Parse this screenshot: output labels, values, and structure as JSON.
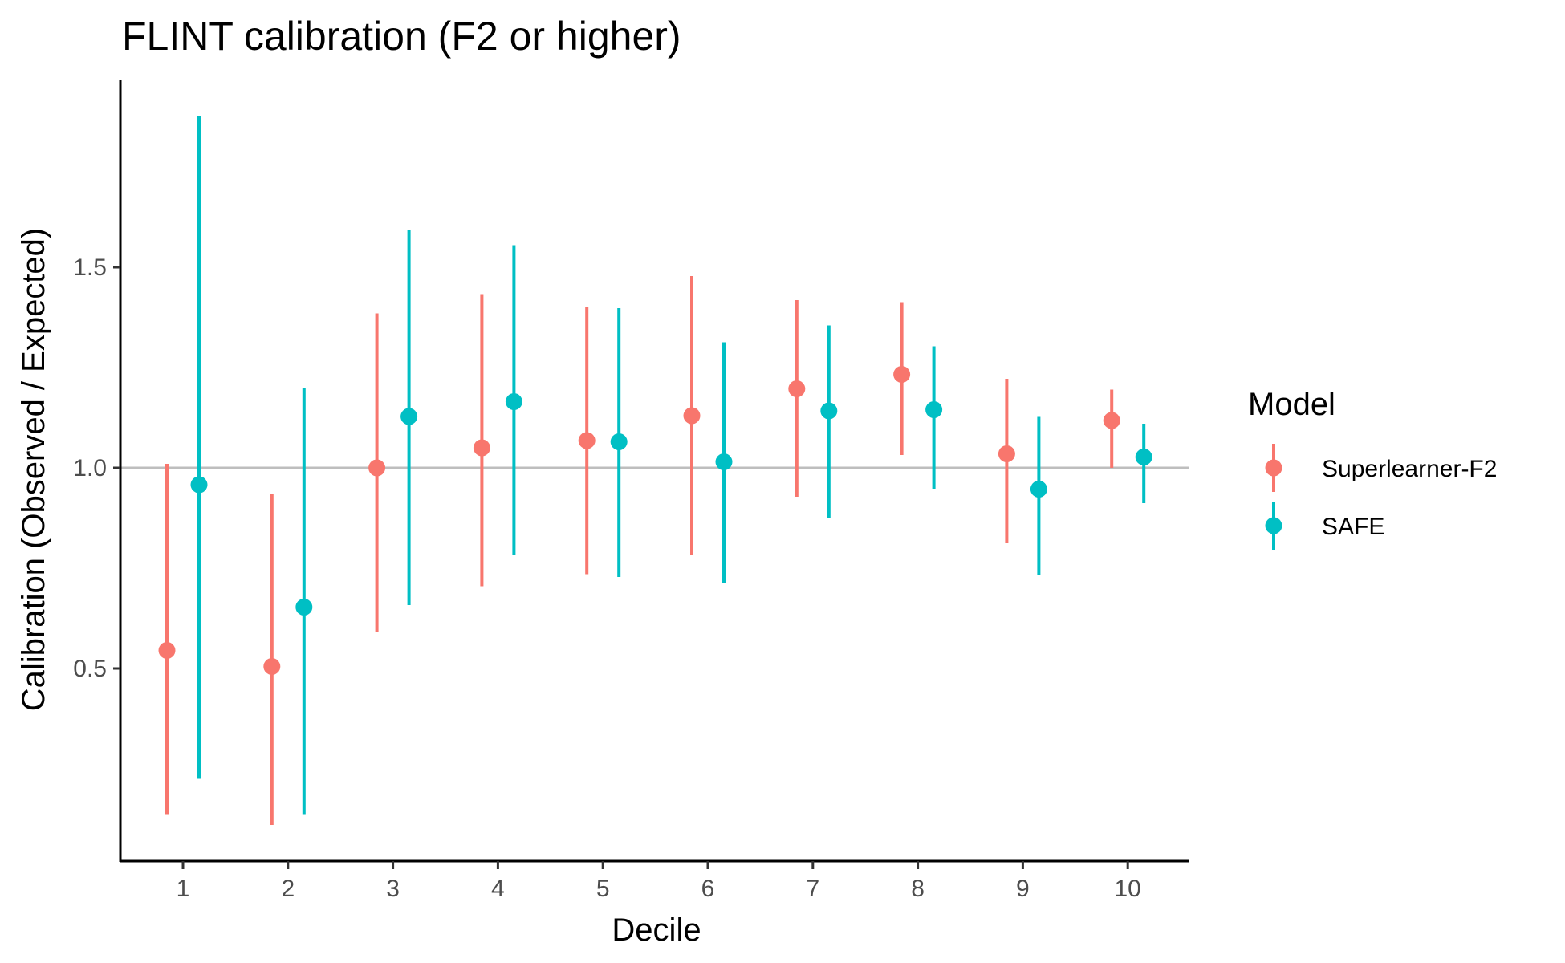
{
  "chart_data": {
    "type": "scatter",
    "title": "FLINT calibration (F2 or higher)",
    "xlabel": "Decile",
    "ylabel": "Calibration (Observed / Expected)",
    "categories": [
      "1",
      "2",
      "3",
      "4",
      "5",
      "6",
      "7",
      "8",
      "9",
      "10"
    ],
    "ylim": [
      0.04,
      2.0
    ],
    "yticks": [
      "0.5",
      "1.0",
      "1.5"
    ],
    "reference_line": 1.0,
    "grid": false,
    "legend_title": "Model",
    "legend_position": "right",
    "series": [
      {
        "name": "Superlearner-F2",
        "color": "#F8766D",
        "values": [
          0.545,
          0.505,
          1.0,
          1.05,
          1.068,
          1.13,
          1.197,
          1.233,
          1.035,
          1.118
        ],
        "lower": [
          0.137,
          0.11,
          0.592,
          0.705,
          0.735,
          0.782,
          0.928,
          1.032,
          0.812,
          1.0
        ],
        "upper": [
          1.01,
          0.935,
          1.385,
          1.433,
          1.4,
          1.478,
          1.418,
          1.413,
          1.222,
          1.195
        ]
      },
      {
        "name": "SAFE",
        "color": "#00BFC4",
        "values": [
          0.958,
          0.653,
          1.128,
          1.165,
          1.065,
          1.015,
          1.142,
          1.145,
          0.947,
          1.027
        ],
        "lower": [
          0.225,
          0.137,
          0.658,
          0.782,
          0.728,
          0.713,
          0.875,
          0.948,
          0.733,
          0.912
        ],
        "upper": [
          1.878,
          1.2,
          1.592,
          1.555,
          1.398,
          1.313,
          1.355,
          1.303,
          1.127,
          1.11
        ]
      }
    ]
  }
}
